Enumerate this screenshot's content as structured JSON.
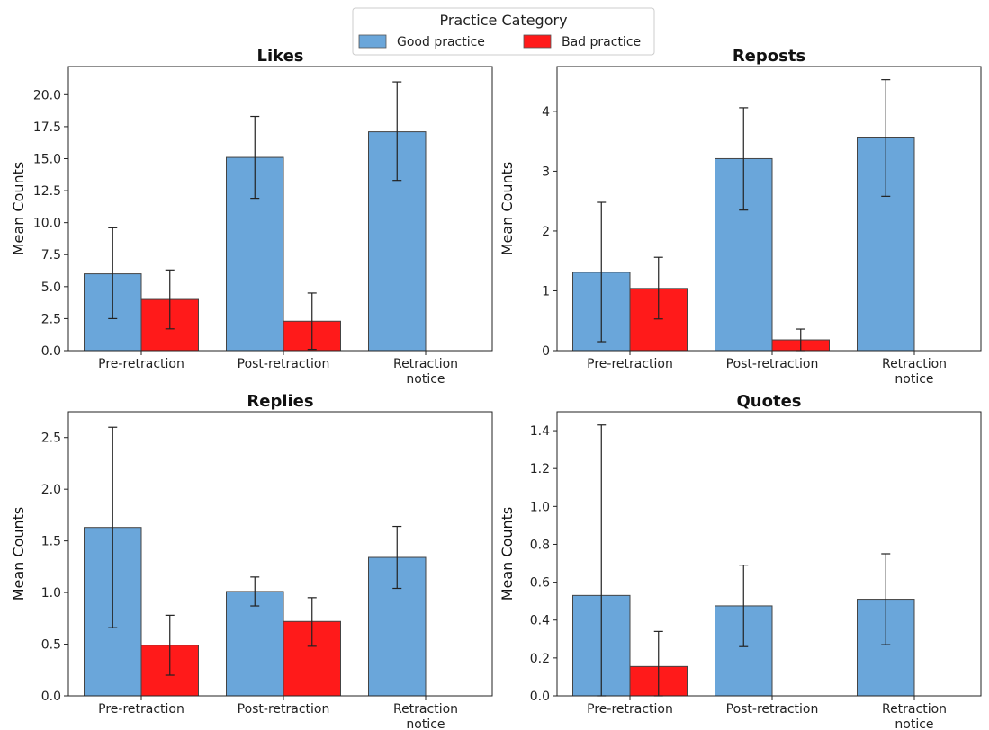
{
  "legend": {
    "title": "Practice Category",
    "entries": [
      {
        "label": "Good practice",
        "color": "#6aa6da"
      },
      {
        "label": "Bad practice",
        "color": "#ff1a1a"
      }
    ],
    "placement": "top-center"
  },
  "chart_data": [
    {
      "type": "bar",
      "title": "Likes",
      "ylabel": "Mean Counts",
      "xlabel": "",
      "categories": [
        [
          "Pre-retraction"
        ],
        [
          "Post-retraction"
        ],
        [
          "Retraction",
          "notice"
        ]
      ],
      "ylim": [
        0,
        22.2
      ],
      "yticks": [
        0.0,
        2.5,
        5.0,
        7.5,
        10.0,
        12.5,
        15.0,
        17.5,
        20.0
      ],
      "ytick_labels": [
        "0.0",
        "2.5",
        "5.0",
        "7.5",
        "10.0",
        "12.5",
        "15.0",
        "17.5",
        "20.0"
      ],
      "series": [
        {
          "name": "Good practice",
          "values": [
            6.0,
            15.1,
            17.1
          ],
          "err_low": [
            2.5,
            11.9,
            13.3
          ],
          "err_high": [
            9.6,
            18.3,
            21.0
          ]
        },
        {
          "name": "Bad practice",
          "values": [
            4.0,
            2.3,
            0.0
          ],
          "err_low": [
            1.7,
            0.1,
            0.0
          ],
          "err_high": [
            6.3,
            4.5,
            0.0
          ]
        }
      ],
      "grid": false
    },
    {
      "type": "bar",
      "title": "Reposts",
      "ylabel": "Mean Counts",
      "xlabel": "",
      "categories": [
        [
          "Pre-retraction"
        ],
        [
          "Post-retraction"
        ],
        [
          "Retraction",
          "notice"
        ]
      ],
      "ylim": [
        0,
        4.75
      ],
      "yticks": [
        0,
        1,
        2,
        3,
        4
      ],
      "ytick_labels": [
        "0",
        "1",
        "2",
        "3",
        "4"
      ],
      "series": [
        {
          "name": "Good practice",
          "values": [
            1.31,
            3.21,
            3.57
          ],
          "err_low": [
            0.15,
            2.35,
            2.58
          ],
          "err_high": [
            2.48,
            4.06,
            4.53
          ]
        },
        {
          "name": "Bad practice",
          "values": [
            1.04,
            0.18,
            0.0
          ],
          "err_low": [
            0.53,
            0.0,
            0.0
          ],
          "err_high": [
            1.56,
            0.36,
            0.0
          ]
        }
      ],
      "grid": false
    },
    {
      "type": "bar",
      "title": "Replies",
      "ylabel": "Mean Counts",
      "xlabel": "",
      "categories": [
        [
          "Pre-retraction"
        ],
        [
          "Post-retraction"
        ],
        [
          "Retraction",
          "notice"
        ]
      ],
      "ylim": [
        0,
        2.75
      ],
      "yticks": [
        0.0,
        0.5,
        1.0,
        1.5,
        2.0,
        2.5
      ],
      "ytick_labels": [
        "0.0",
        "0.5",
        "1.0",
        "1.5",
        "2.0",
        "2.5"
      ],
      "series": [
        {
          "name": "Good practice",
          "values": [
            1.63,
            1.01,
            1.34
          ],
          "err_low": [
            0.66,
            0.87,
            1.04
          ],
          "err_high": [
            2.6,
            1.15,
            1.64
          ]
        },
        {
          "name": "Bad practice",
          "values": [
            0.49,
            0.72,
            0.0
          ],
          "err_low": [
            0.2,
            0.48,
            0.0
          ],
          "err_high": [
            0.78,
            0.95,
            0.0
          ]
        }
      ],
      "grid": false
    },
    {
      "type": "bar",
      "title": "Quotes",
      "ylabel": "Mean Counts",
      "xlabel": "",
      "categories": [
        [
          "Pre-retraction"
        ],
        [
          "Post-retraction"
        ],
        [
          "Retraction",
          "notice"
        ]
      ],
      "ylim": [
        0,
        1.5
      ],
      "yticks": [
        0.0,
        0.2,
        0.4,
        0.6,
        0.8,
        1.0,
        1.2,
        1.4
      ],
      "ytick_labels": [
        "0.0",
        "0.2",
        "0.4",
        "0.6",
        "0.8",
        "1.0",
        "1.2",
        "1.4"
      ],
      "series": [
        {
          "name": "Good practice",
          "values": [
            0.53,
            0.475,
            0.51
          ],
          "err_low": [
            0.0,
            0.26,
            0.27
          ],
          "err_high": [
            1.43,
            0.69,
            0.75
          ]
        },
        {
          "name": "Bad practice",
          "values": [
            0.155,
            0.0,
            0.0
          ],
          "err_low": [
            0.0,
            0.0,
            0.0
          ],
          "err_high": [
            0.34,
            0.0,
            0.0
          ]
        }
      ],
      "grid": false
    }
  ]
}
